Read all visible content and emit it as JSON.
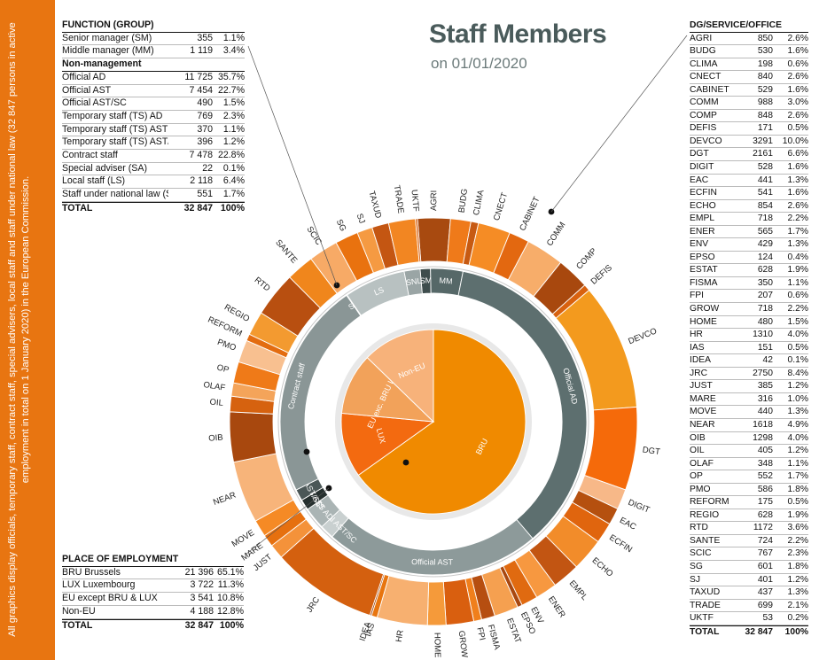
{
  "title": "Staff Members",
  "subtitle": "on 01/01/2020",
  "sidebar_text": "All graphics display officials, temporary staff, contract staff, special advisers, local staff and staff under national law (32 847 persons in active employment in total on 1 January 2020) in the European Commission.",
  "function_table": {
    "header": "FUNCTION (GROUP)",
    "rows": [
      {
        "label": "Senior manager (SM)",
        "value": "355",
        "pct": "1.1%"
      },
      {
        "label": "Middle manager (MM)",
        "value": "1 119",
        "pct": "3.4%"
      }
    ],
    "subheader": "Non-management",
    "rows2": [
      {
        "label": "Official AD",
        "value": "11 725",
        "pct": "35.7%"
      },
      {
        "label": "Official AST",
        "value": "7 454",
        "pct": "22.7%"
      },
      {
        "label": "Official AST/SC",
        "value": "490",
        "pct": "1.5%"
      },
      {
        "label": "Temporary staff (TS) AD",
        "value": "769",
        "pct": "2.3%"
      },
      {
        "label": "Temporary staff (TS) AST",
        "value": "370",
        "pct": "1.1%"
      },
      {
        "label": "Temporary staff (TS) AST/SC",
        "value": "396",
        "pct": "1.2%"
      },
      {
        "label": "Contract staff",
        "value": "7 478",
        "pct": "22.8%"
      },
      {
        "label": "Special adviser (SA)",
        "value": "22",
        "pct": "0.1%"
      },
      {
        "label": "Local staff (LS)",
        "value": "2 118",
        "pct": "6.4%"
      },
      {
        "label": "Staff under national law (SNL)",
        "value": "551",
        "pct": "1.7%"
      }
    ],
    "total": {
      "label": "TOTAL",
      "value": "32 847",
      "pct": "100%"
    }
  },
  "place_table": {
    "header": "PLACE OF EMPLOYMENT",
    "rows": [
      {
        "label": "BRU Brussels",
        "value": "21 396",
        "pct": "65.1%"
      },
      {
        "label": "LUX Luxembourg",
        "value": "3 722",
        "pct": "11.3%"
      },
      {
        "label": "EU except BRU & LUX",
        "value": "3 541",
        "pct": "10.8%"
      },
      {
        "label": "Non-EU",
        "value": "4 188",
        "pct": "12.8%"
      }
    ],
    "total": {
      "label": "TOTAL",
      "value": "32 847",
      "pct": "100%"
    }
  },
  "dg_table": {
    "header": "DG/SERVICE/OFFICE",
    "total": {
      "label": "TOTAL",
      "value": "32 847",
      "pct": "100%"
    }
  },
  "chart_data": {
    "type": "pie",
    "subtype": "multi-ring donut",
    "total": 32847,
    "inner_ring": {
      "title": "Place of employment",
      "slices": [
        {
          "label": "BRU",
          "value": 21396,
          "pct": 65.1,
          "color": "#f08a00"
        },
        {
          "label": "LUX",
          "value": 3722,
          "pct": 11.3,
          "color": "#f36a10"
        },
        {
          "label": "EU exc. BRU LUX",
          "value": 3541,
          "pct": 10.8,
          "color": "#f2a25a"
        },
        {
          "label": "Non-EU",
          "value": 4188,
          "pct": 12.8,
          "color": "#f7b27a"
        }
      ]
    },
    "middle_ring": {
      "title": "Function (group)",
      "slices": [
        {
          "label": "SM",
          "value": 355,
          "color": "#3e4d4d"
        },
        {
          "label": "MM",
          "value": 1119,
          "color": "#566868"
        },
        {
          "label": "Official AD",
          "value": 11725,
          "color": "#5d6f6f"
        },
        {
          "label": "Official AST",
          "value": 7454,
          "color": "#8d9a9a"
        },
        {
          "label": "Official AST/SC",
          "value": 490,
          "color": "#c9d0d0"
        },
        {
          "label": "TS AD",
          "value": 769,
          "color": "#aab4b4"
        },
        {
          "label": "TS AST",
          "value": 370,
          "color": "#26302f"
        },
        {
          "label": "TS AST/SC",
          "value": 396,
          "color": "#4b5757"
        },
        {
          "label": "Contract staff",
          "value": 7478,
          "color": "#8a9696"
        },
        {
          "label": "SA",
          "value": 22,
          "color": "#3a4545"
        },
        {
          "label": "LS",
          "value": 2118,
          "color": "#b8c1c1"
        },
        {
          "label": "SNL",
          "value": 551,
          "color": "#9aa5a5"
        }
      ]
    },
    "outer_ring": {
      "title": "DG/Service/Office",
      "slices": [
        {
          "label": "AGRI",
          "value": 850,
          "pct": "2.6%",
          "color": "#a84a10"
        },
        {
          "label": "BUDG",
          "value": 530,
          "pct": "1.6%",
          "color": "#ef7a1a"
        },
        {
          "label": "CLIMA",
          "value": 198,
          "pct": "0.6%",
          "color": "#c75a12"
        },
        {
          "label": "CNECT",
          "value": 840,
          "pct": "2.6%",
          "color": "#f58c25"
        },
        {
          "label": "CABINET",
          "value": 529,
          "pct": "1.6%",
          "color": "#e36810"
        },
        {
          "label": "COMM",
          "value": 988,
          "pct": "3.0%",
          "color": "#f7ad6a"
        },
        {
          "label": "COMP",
          "value": 848,
          "pct": "2.6%",
          "color": "#a8480e"
        },
        {
          "label": "DEFIS",
          "value": 171,
          "pct": "0.5%",
          "color": "#d9620f"
        },
        {
          "label": "DEVCO",
          "value": 3291,
          "pct": "10.0%",
          "color": "#f39a1e"
        },
        {
          "label": "DGT",
          "value": 2161,
          "pct": "6.6%",
          "color": "#f56a0a"
        },
        {
          "label": "DIGIT",
          "value": 528,
          "pct": "1.6%",
          "color": "#f7b888"
        },
        {
          "label": "EAC",
          "value": 441,
          "pct": "1.3%",
          "color": "#b5500f"
        },
        {
          "label": "ECFIN",
          "value": 541,
          "pct": "1.6%",
          "color": "#e0650e"
        },
        {
          "label": "ECHO",
          "value": 854,
          "pct": "2.6%",
          "color": "#f28c2a"
        },
        {
          "label": "EMPL",
          "value": 718,
          "pct": "2.2%",
          "color": "#c25512"
        },
        {
          "label": "ENER",
          "value": 565,
          "pct": "1.7%",
          "color": "#f79840"
        },
        {
          "label": "ENV",
          "value": 429,
          "pct": "1.3%",
          "color": "#e06a10"
        },
        {
          "label": "EPSO",
          "value": 124,
          "pct": "0.4%",
          "color": "#a94810"
        },
        {
          "label": "ESTAT",
          "value": 628,
          "pct": "1.9%",
          "color": "#f5a050"
        },
        {
          "label": "FISMA",
          "value": 350,
          "pct": "1.1%",
          "color": "#b64e10"
        },
        {
          "label": "FPI",
          "value": 207,
          "pct": "0.6%",
          "color": "#f07f1c"
        },
        {
          "label": "GROW",
          "value": 718,
          "pct": "2.2%",
          "color": "#d95f0f"
        },
        {
          "label": "HOME",
          "value": 480,
          "pct": "1.5%",
          "color": "#f59a3a"
        },
        {
          "label": "HR",
          "value": 1310,
          "pct": "4.0%",
          "color": "#f7b070"
        },
        {
          "label": "IAS",
          "value": 151,
          "pct": "0.5%",
          "color": "#e8750f"
        },
        {
          "label": "IDEA",
          "value": 42,
          "pct": "0.1%",
          "color": "#9c420e"
        },
        {
          "label": "JRC",
          "value": 2750,
          "pct": "8.4%",
          "color": "#d4600f"
        },
        {
          "label": "JUST",
          "value": 385,
          "pct": "1.2%",
          "color": "#f4923a"
        },
        {
          "label": "MARE",
          "value": 316,
          "pct": "1.0%",
          "color": "#e6700f"
        },
        {
          "label": "MOVE",
          "value": 440,
          "pct": "1.3%",
          "color": "#f58a25"
        },
        {
          "label": "NEAR",
          "value": 1618,
          "pct": "4.9%",
          "color": "#f7b47a"
        },
        {
          "label": "OIB",
          "value": 1298,
          "pct": "4.0%",
          "color": "#a8480e"
        },
        {
          "label": "OIL",
          "value": 405,
          "pct": "1.2%",
          "color": "#d6620f"
        },
        {
          "label": "OLAF",
          "value": 348,
          "pct": "1.1%",
          "color": "#f4a45a"
        },
        {
          "label": "OP",
          "value": 552,
          "pct": "1.7%",
          "color": "#ef7a18"
        },
        {
          "label": "PMO",
          "value": 586,
          "pct": "1.8%",
          "color": "#f8c090"
        },
        {
          "label": "REFORM",
          "value": 175,
          "pct": "0.5%",
          "color": "#e36c10"
        },
        {
          "label": "REGIO",
          "value": 628,
          "pct": "1.9%",
          "color": "#f39a30"
        },
        {
          "label": "RTD",
          "value": 1172,
          "pct": "3.6%",
          "color": "#b84f10"
        },
        {
          "label": "SANTE",
          "value": 724,
          "pct": "2.2%",
          "color": "#f0861c"
        },
        {
          "label": "SCIC",
          "value": 767,
          "pct": "2.3%",
          "color": "#f7aa66"
        },
        {
          "label": "SG",
          "value": 601,
          "pct": "1.8%",
          "color": "#e9720f"
        },
        {
          "label": "SJ",
          "value": 401,
          "pct": "1.2%",
          "color": "#f59a42"
        },
        {
          "label": "TAXUD",
          "value": 437,
          "pct": "1.3%",
          "color": "#c45612"
        },
        {
          "label": "TRADE",
          "value": 699,
          "pct": "2.1%",
          "color": "#f28622"
        },
        {
          "label": "UKTF",
          "value": 53,
          "pct": "0.2%",
          "color": "#d8600f"
        }
      ]
    }
  }
}
